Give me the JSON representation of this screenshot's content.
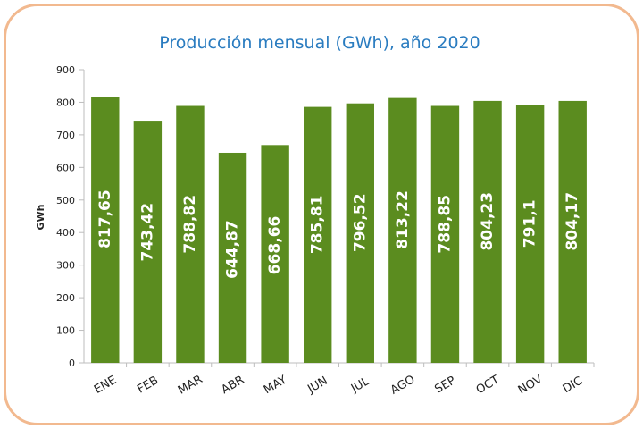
{
  "chart_data": {
    "type": "bar",
    "title": "Producción mensual (GWh), año 2020",
    "ylabel": "GWh",
    "xlabel": "",
    "ylim": [
      0,
      900
    ],
    "yticks": [
      0,
      100,
      200,
      300,
      400,
      500,
      600,
      700,
      800,
      900
    ],
    "categories": [
      "ENE",
      "FEB",
      "MAR",
      "ABR",
      "MAY",
      "JUN",
      "JUL",
      "AGO",
      "SEP",
      "OCT",
      "NOV",
      "DIC"
    ],
    "values": [
      817.65,
      743.42,
      788.82,
      644.87,
      668.66,
      785.81,
      796.52,
      813.22,
      788.85,
      804.23,
      791.1,
      804.17
    ],
    "value_labels": [
      "817,65",
      "743,42",
      "788,82",
      "644,87",
      "668,66",
      "785,81",
      "796,52",
      "813,22",
      "788,85",
      "804,23",
      "791,1",
      "804,17"
    ],
    "bar_color": "#5b8c1f",
    "title_color": "#2a7cc0",
    "frame_color": "#f2b98f",
    "grid": false,
    "legend": "none"
  }
}
